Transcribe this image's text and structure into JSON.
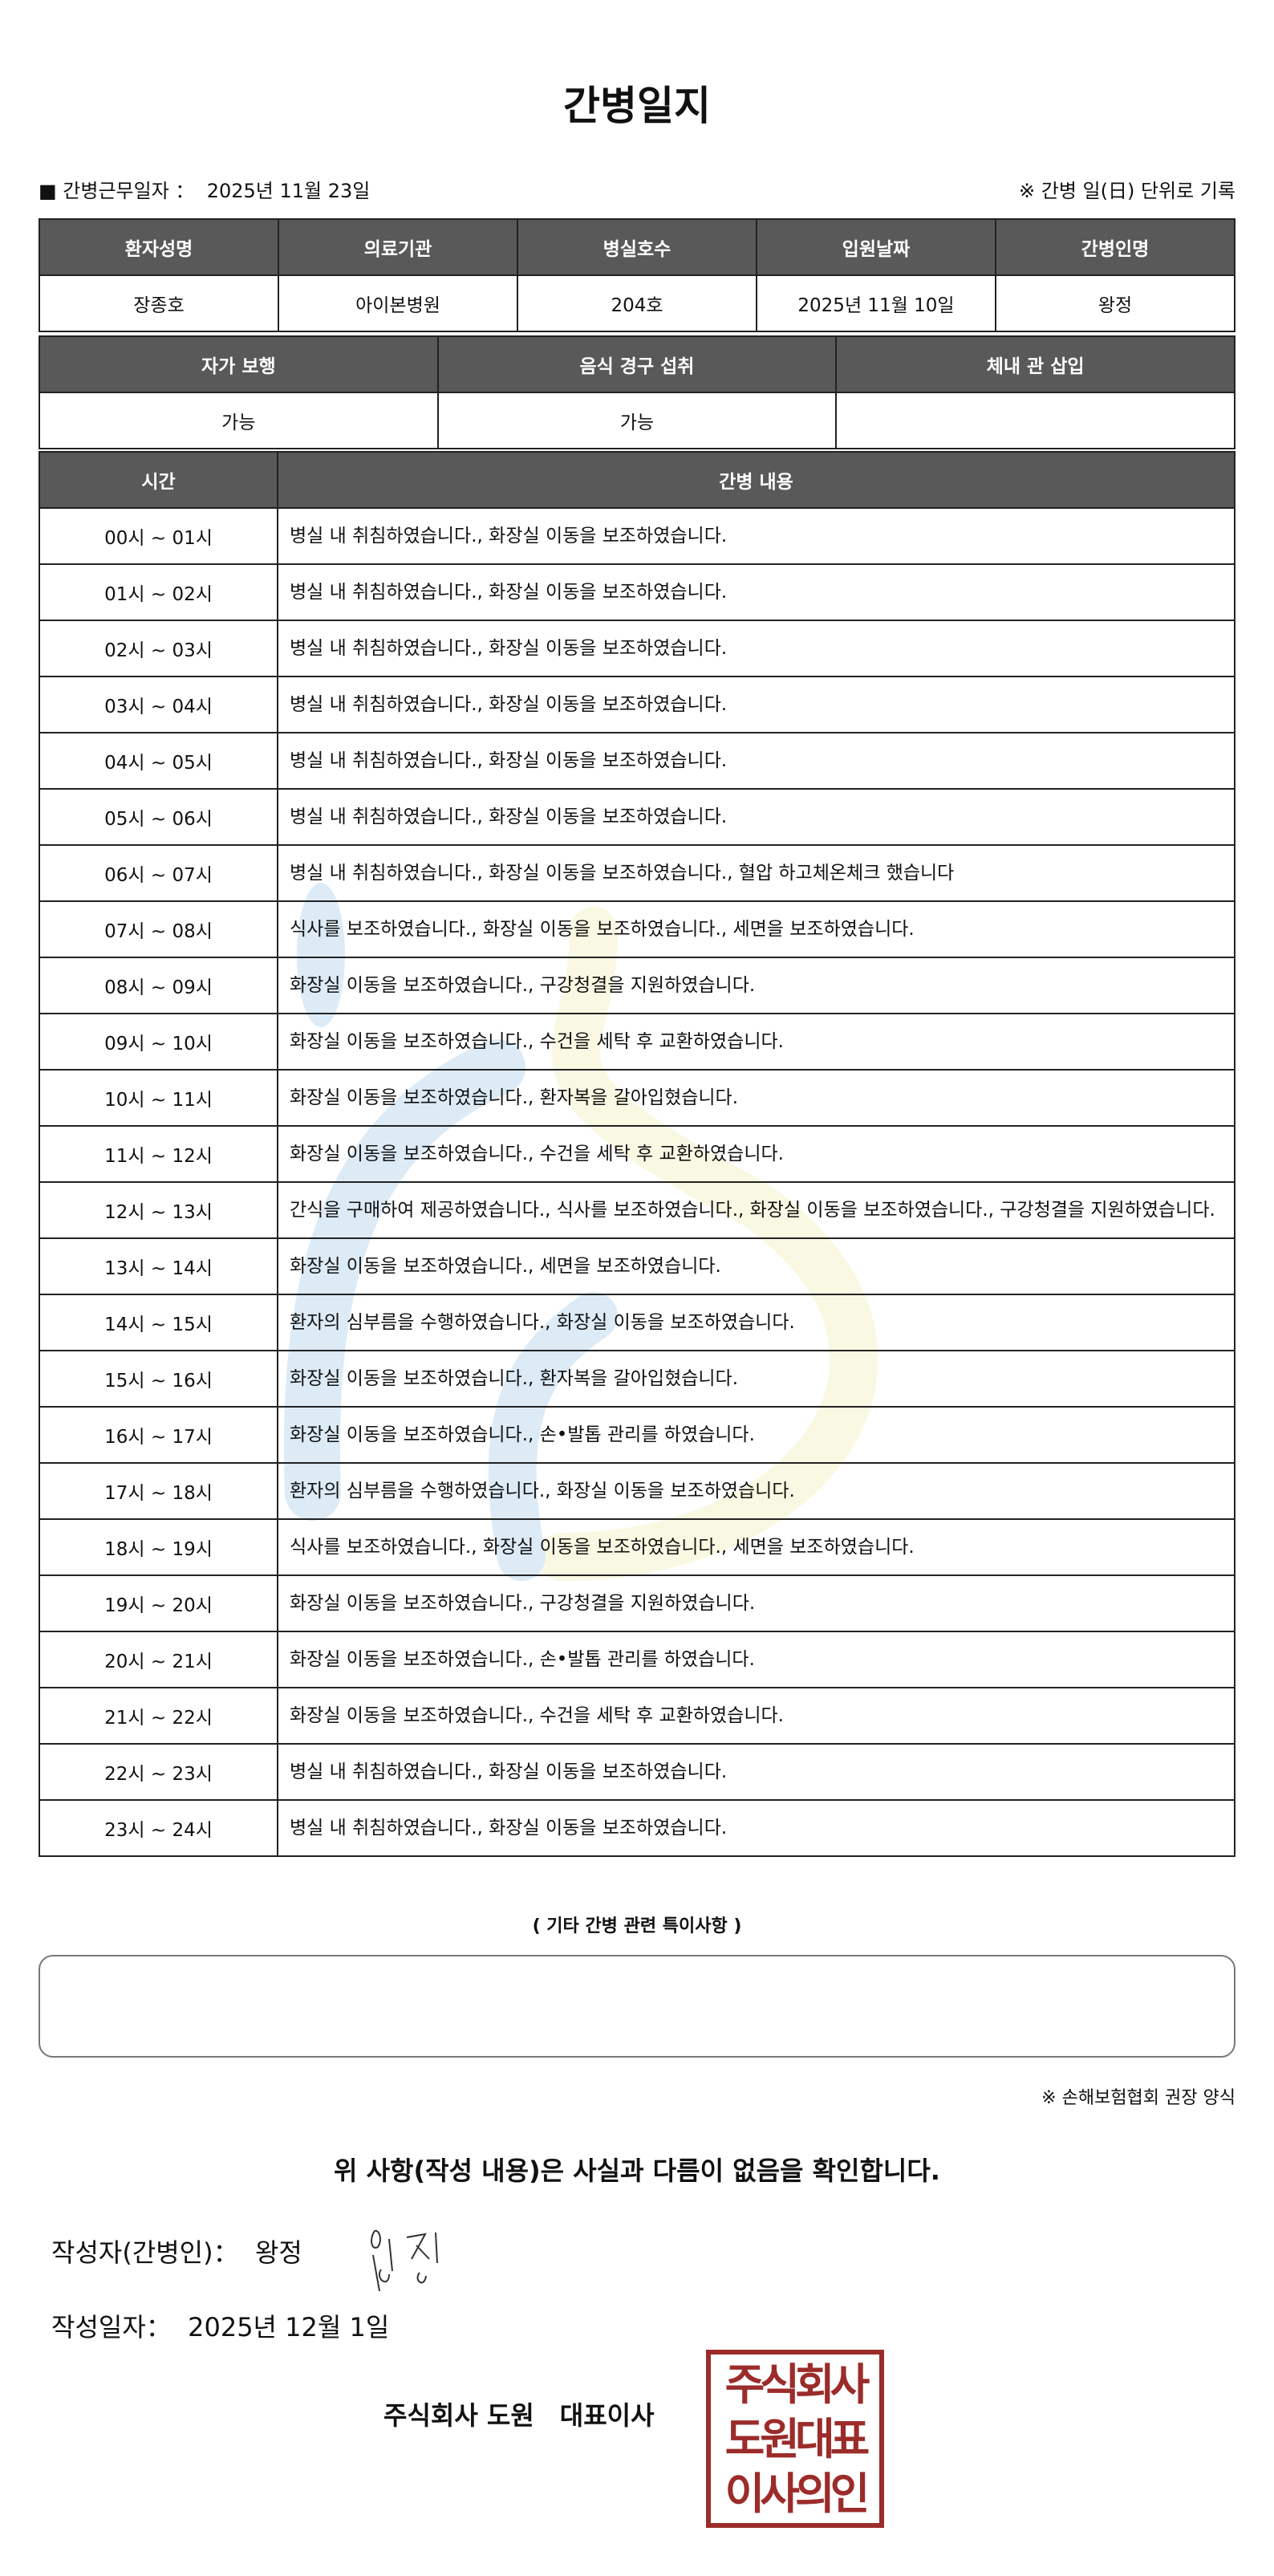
{
  "title": "간병일지",
  "info": {
    "work_date_label": "■ 간병근무일자 ：",
    "work_date": "2025년 11월 23일",
    "unit_note": "※ 간병 일(日) 단위로 기록"
  },
  "patient_table": {
    "headers": [
      "환자성명",
      "의료기관",
      "병실호수",
      "입원날짜",
      "간병인명"
    ],
    "values": [
      "장종호",
      "아이본병원",
      "204호",
      "2025년 11월 10일",
      "왕정"
    ]
  },
  "status_table": {
    "headers": [
      "자가 보행",
      "음식 경구 섭취",
      "체내 관 삽입"
    ],
    "values": [
      "가능",
      "가능",
      ""
    ]
  },
  "log_table": {
    "headers": [
      "시간",
      "간병 내용"
    ],
    "rows": [
      {
        "time": "00시 ~ 01시",
        "content": "병실 내 취침하였습니다., 화장실 이동을 보조하였습니다."
      },
      {
        "time": "01시 ~ 02시",
        "content": "병실 내 취침하였습니다., 화장실 이동을 보조하였습니다."
      },
      {
        "time": "02시 ~ 03시",
        "content": "병실 내 취침하였습니다., 화장실 이동을 보조하였습니다."
      },
      {
        "time": "03시 ~ 04시",
        "content": "병실 내 취침하였습니다., 화장실 이동을 보조하였습니다."
      },
      {
        "time": "04시 ~ 05시",
        "content": "병실 내 취침하였습니다., 화장실 이동을 보조하였습니다."
      },
      {
        "time": "05시 ~ 06시",
        "content": "병실 내 취침하였습니다., 화장실 이동을 보조하였습니다."
      },
      {
        "time": "06시 ~ 07시",
        "content": "병실 내 취침하였습니다., 화장실 이동을 보조하였습니다., 혈압 하고체온체크 했습니다"
      },
      {
        "time": "07시 ~ 08시",
        "content": "식사를 보조하였습니다., 화장실 이동을 보조하였습니다., 세면을 보조하였습니다."
      },
      {
        "time": "08시 ~ 09시",
        "content": "화장실 이동을 보조하였습니다., 구강청결을 지원하였습니다."
      },
      {
        "time": "09시 ~ 10시",
        "content": "화장실 이동을 보조하였습니다., 수건을 세탁 후 교환하였습니다."
      },
      {
        "time": "10시 ~ 11시",
        "content": "화장실 이동을 보조하였습니다., 환자복을 갈아입혔습니다."
      },
      {
        "time": "11시 ~ 12시",
        "content": "화장실 이동을 보조하였습니다., 수건을 세탁 후 교환하였습니다."
      },
      {
        "time": "12시 ~ 13시",
        "content": "간식을 구매하여 제공하였습니다., 식사를 보조하였습니다., 화장실 이동을 보조하였습니다., 구강청결을 지원하였습니다."
      },
      {
        "time": "13시 ~ 14시",
        "content": "화장실 이동을 보조하였습니다., 세면을 보조하였습니다."
      },
      {
        "time": "14시 ~ 15시",
        "content": "환자의 심부름을 수행하였습니다., 화장실 이동을 보조하였습니다."
      },
      {
        "time": "15시 ~ 16시",
        "content": "화장실 이동을 보조하였습니다., 환자복을 갈아입혔습니다."
      },
      {
        "time": "16시 ~ 17시",
        "content": "화장실 이동을 보조하였습니다., 손•발톱 관리를 하였습니다."
      },
      {
        "time": "17시 ~ 18시",
        "content": "환자의 심부름을 수행하였습니다., 화장실 이동을 보조하였습니다."
      },
      {
        "time": "18시 ~ 19시",
        "content": "식사를 보조하였습니다., 화장실 이동을 보조하였습니다., 세면을 보조하였습니다."
      },
      {
        "time": "19시 ~ 20시",
        "content": "화장실 이동을 보조하였습니다., 구강청결을 지원하였습니다."
      },
      {
        "time": "20시 ~ 21시",
        "content": "화장실 이동을 보조하였습니다., 손•발톱 관리를 하였습니다."
      },
      {
        "time": "21시 ~ 22시",
        "content": "화장실 이동을 보조하였습니다., 수건을 세탁 후 교환하였습니다."
      },
      {
        "time": "22시 ~ 23시",
        "content": "병실 내 취침하였습니다., 화장실 이동을 보조하였습니다."
      },
      {
        "time": "23시 ~ 24시",
        "content": "병실 내 취침하였습니다., 화장실 이동을 보조하였습니다."
      }
    ]
  },
  "notes": {
    "title": "( 기타 간병 관련 특이사항 )",
    "content": ""
  },
  "form_note": "※ 손해보험협회 권장 양식",
  "confirm": "위 사항(작성 내용)은 사실과 다름이 없음을 확인합니다.",
  "writer": {
    "label": "작성자(간병인)：",
    "name": "왕정",
    "signature": "왕정"
  },
  "date": {
    "label": "작성일자：",
    "value": "2025년 12월 1일"
  },
  "company": "주식회사 도원　대표이사",
  "seal": {
    "lines": [
      "주식회사",
      "도원대표",
      "이사의인"
    ],
    "color": "#9b2c2a"
  },
  "colors": {
    "header_bg": "#595959",
    "watermark_blue": "#9cc8e8",
    "watermark_yellow": "#eef0b0"
  }
}
